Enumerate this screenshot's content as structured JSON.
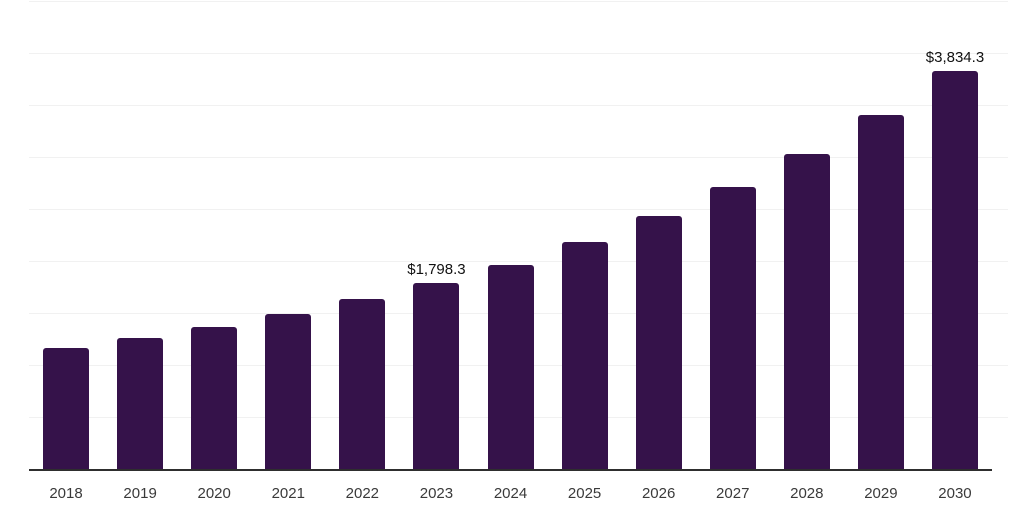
{
  "chart_data": {
    "type": "bar",
    "title": "",
    "xlabel": "",
    "ylabel": "",
    "categories": [
      "2018",
      "2019",
      "2020",
      "2021",
      "2022",
      "2023",
      "2024",
      "2025",
      "2026",
      "2027",
      "2028",
      "2029",
      "2030"
    ],
    "values": [
      1175,
      1265,
      1380,
      1500,
      1645,
      1798.3,
      1975,
      2190,
      2440,
      2720,
      3040,
      3415,
      3834.3
    ],
    "data_labels": {
      "2023": "$1,798.3",
      "2030": "$3,834.3"
    },
    "ylim": [
      0,
      4500
    ],
    "gridline_step": 500,
    "grid": "horizontal-only",
    "legend": "none",
    "y_axis_labels_visible": false,
    "colors": {
      "bar": "#35124A",
      "gridline": "#F1F1F1",
      "axis_line": "#2E2E2E",
      "tick_label": "#3A3A3A",
      "data_label": "#111111",
      "background": "#FFFFFF"
    }
  }
}
